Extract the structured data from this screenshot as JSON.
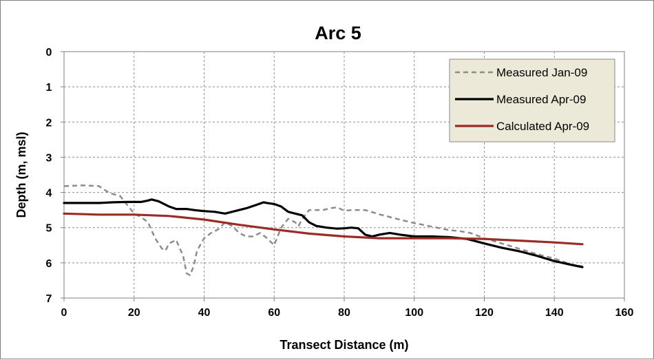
{
  "chart_data": {
    "type": "line",
    "title": "Arc 5",
    "xlabel": "Transect Distance (m)",
    "ylabel": "Depth (m, msl)",
    "xlim": [
      0,
      160
    ],
    "ylim": [
      0,
      7
    ],
    "y_inverted": true,
    "xticks": [
      0,
      20,
      40,
      60,
      80,
      100,
      120,
      140,
      160
    ],
    "yticks": [
      0,
      1,
      2,
      3,
      4,
      5,
      6,
      7
    ],
    "grid": true,
    "legend_position": "top-right",
    "series": [
      {
        "name": "Measured Jan-09",
        "color": "#8c8c8c",
        "style": "dashed",
        "points": [
          [
            0,
            3.82
          ],
          [
            5,
            3.8
          ],
          [
            10,
            3.82
          ],
          [
            13,
            4.02
          ],
          [
            16,
            4.1
          ],
          [
            18,
            4.35
          ],
          [
            20,
            4.6
          ],
          [
            22,
            4.7
          ],
          [
            24,
            4.85
          ],
          [
            26,
            5.3
          ],
          [
            28,
            5.6
          ],
          [
            29,
            5.65
          ],
          [
            30,
            5.45
          ],
          [
            32,
            5.35
          ],
          [
            34,
            5.8
          ],
          [
            35,
            6.3
          ],
          [
            36,
            6.35
          ],
          [
            37,
            6.1
          ],
          [
            38,
            5.65
          ],
          [
            40,
            5.3
          ],
          [
            42,
            5.15
          ],
          [
            44,
            5.05
          ],
          [
            46,
            4.85
          ],
          [
            48,
            4.95
          ],
          [
            50,
            5.15
          ],
          [
            52,
            5.25
          ],
          [
            54,
            5.25
          ],
          [
            56,
            5.15
          ],
          [
            58,
            5.3
          ],
          [
            60,
            5.5
          ],
          [
            62,
            5.0
          ],
          [
            64,
            4.75
          ],
          [
            66,
            4.85
          ],
          [
            67,
            4.95
          ],
          [
            68,
            4.75
          ],
          [
            70,
            4.5
          ],
          [
            72,
            4.5
          ],
          [
            74,
            4.5
          ],
          [
            76,
            4.45
          ],
          [
            78,
            4.42
          ],
          [
            80,
            4.52
          ],
          [
            82,
            4.5
          ],
          [
            84,
            4.5
          ],
          [
            86,
            4.5
          ],
          [
            90,
            4.62
          ],
          [
            95,
            4.75
          ],
          [
            100,
            4.87
          ],
          [
            105,
            4.97
          ],
          [
            110,
            5.07
          ],
          [
            113,
            5.1
          ],
          [
            116,
            5.15
          ],
          [
            120,
            5.3
          ],
          [
            125,
            5.45
          ],
          [
            130,
            5.6
          ],
          [
            135,
            5.75
          ],
          [
            140,
            5.88
          ],
          [
            145,
            6.05
          ],
          [
            148,
            6.1
          ]
        ]
      },
      {
        "name": "Measured Apr-09",
        "color": "#000000",
        "style": "solid",
        "points": [
          [
            0,
            4.3
          ],
          [
            5,
            4.3
          ],
          [
            10,
            4.3
          ],
          [
            14,
            4.28
          ],
          [
            18,
            4.27
          ],
          [
            22,
            4.27
          ],
          [
            24,
            4.23
          ],
          [
            25,
            4.2
          ],
          [
            27,
            4.25
          ],
          [
            30,
            4.4
          ],
          [
            32,
            4.47
          ],
          [
            35,
            4.47
          ],
          [
            37,
            4.5
          ],
          [
            40,
            4.53
          ],
          [
            43,
            4.55
          ],
          [
            46,
            4.6
          ],
          [
            48,
            4.55
          ],
          [
            52,
            4.45
          ],
          [
            55,
            4.35
          ],
          [
            57,
            4.28
          ],
          [
            58,
            4.3
          ],
          [
            60,
            4.33
          ],
          [
            62,
            4.4
          ],
          [
            64,
            4.55
          ],
          [
            66,
            4.6
          ],
          [
            68,
            4.65
          ],
          [
            70,
            4.85
          ],
          [
            72,
            4.95
          ],
          [
            75,
            5.0
          ],
          [
            78,
            5.03
          ],
          [
            80,
            5.02
          ],
          [
            82,
            5.0
          ],
          [
            84,
            5.02
          ],
          [
            86,
            5.2
          ],
          [
            88,
            5.25
          ],
          [
            90,
            5.2
          ],
          [
            93,
            5.15
          ],
          [
            96,
            5.2
          ],
          [
            100,
            5.25
          ],
          [
            105,
            5.25
          ],
          [
            110,
            5.27
          ],
          [
            115,
            5.32
          ],
          [
            120,
            5.45
          ],
          [
            125,
            5.57
          ],
          [
            130,
            5.67
          ],
          [
            135,
            5.8
          ],
          [
            140,
            5.95
          ],
          [
            145,
            6.06
          ],
          [
            148,
            6.12
          ]
        ]
      },
      {
        "name": "Calculated Apr-09",
        "color": "#9b2b25",
        "style": "solid",
        "points": [
          [
            0,
            4.6
          ],
          [
            10,
            4.63
          ],
          [
            20,
            4.63
          ],
          [
            30,
            4.67
          ],
          [
            40,
            4.77
          ],
          [
            50,
            4.92
          ],
          [
            60,
            5.05
          ],
          [
            70,
            5.17
          ],
          [
            80,
            5.25
          ],
          [
            90,
            5.3
          ],
          [
            100,
            5.3
          ],
          [
            110,
            5.3
          ],
          [
            120,
            5.32
          ],
          [
            130,
            5.37
          ],
          [
            140,
            5.42
          ],
          [
            148,
            5.47
          ]
        ]
      }
    ]
  }
}
